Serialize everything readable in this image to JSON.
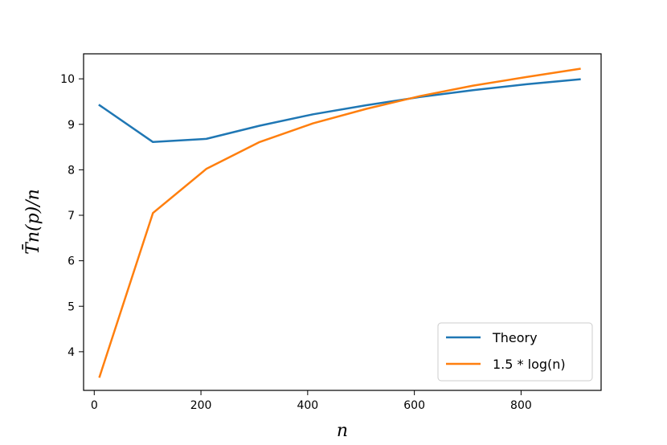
{
  "chart_data": {
    "type": "line",
    "xlabel": "n",
    "ylabel": "T̄n(p)/n",
    "xlim": [
      -20,
      950
    ],
    "ylim": [
      3.15,
      10.55
    ],
    "x_ticks": [
      0,
      200,
      400,
      600,
      800
    ],
    "y_ticks": [
      4,
      5,
      6,
      7,
      8,
      9,
      10
    ],
    "x_tick_labels": [
      "0",
      "200",
      "400",
      "600",
      "800"
    ],
    "y_tick_labels": [
      "4",
      "5",
      "6",
      "7",
      "8",
      "9",
      "10"
    ],
    "legend_position": "lower-right",
    "grid": false,
    "x": [
      10,
      110,
      210,
      310,
      410,
      510,
      610,
      710,
      810,
      910
    ],
    "series": [
      {
        "name": "Theory",
        "color": "#1f77b4",
        "values": [
          9.42,
          8.61,
          8.68,
          8.97,
          9.22,
          9.42,
          9.6,
          9.75,
          9.88,
          9.99
        ]
      },
      {
        "name": "1.5 * log(n)",
        "color": "#ff7f0e",
        "values": [
          3.45,
          7.05,
          8.02,
          8.61,
          9.02,
          9.34,
          9.62,
          9.85,
          10.04,
          10.22
        ]
      }
    ]
  }
}
